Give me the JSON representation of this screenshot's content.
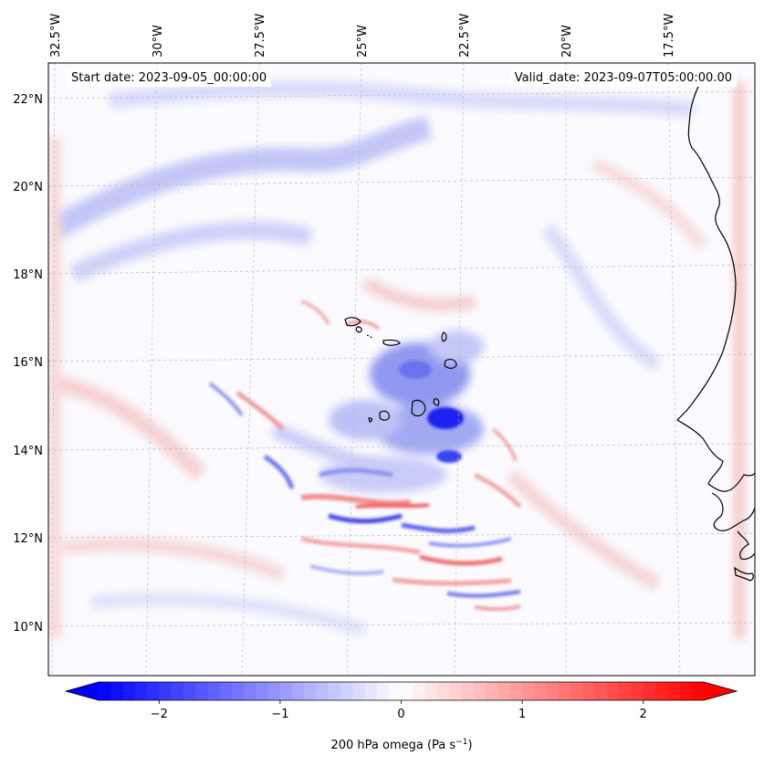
{
  "map": {
    "start_label": "Start date: 2023-09-05_00:00:00",
    "valid_label": "Valid_date: 2023-09-07T05:00:00.00",
    "top_lon_labels": [
      "32.5°W",
      "30°W",
      "27.5°W",
      "25°W",
      "22.5°W",
      "20°W",
      "17.5°W"
    ],
    "left_lat_labels": [
      "22°N",
      "20°N",
      "18°N",
      "16°N",
      "14°N",
      "12°N",
      "10°N"
    ],
    "field_name": "200 hPa omega"
  },
  "colorbar": {
    "label_prefix": "200 hPa omega (Pa s",
    "label_exp": "−1",
    "label_suffix": ")",
    "ticks": [
      "−2",
      "−1",
      "0",
      "1",
      "2"
    ],
    "tick_values": [
      -2,
      -1,
      0,
      1,
      2
    ],
    "range": [
      -2.5,
      2.5
    ],
    "colormap": "bwr",
    "color_low": "#0000ff",
    "color_mid": "#ffffff",
    "color_high": "#ff0000"
  }
}
